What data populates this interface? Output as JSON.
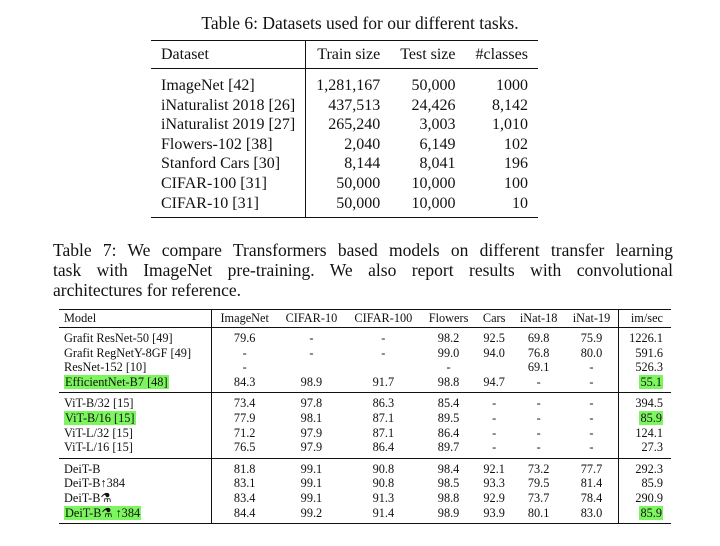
{
  "table6": {
    "caption": "Table 6: Datasets used for our different tasks.",
    "headers": [
      "Dataset",
      "Train size",
      "Test size",
      "#classes"
    ],
    "rows": [
      [
        "ImageNet [42]",
        "1,281,167",
        "50,000",
        "1000"
      ],
      [
        "iNaturalist 2018 [26]",
        "437,513",
        "24,426",
        "8,142"
      ],
      [
        "iNaturalist 2019 [27]",
        "265,240",
        "3,003",
        "1,010"
      ],
      [
        "Flowers-102 [38]",
        "2,040",
        "6,149",
        "102"
      ],
      [
        "Stanford Cars [30]",
        "8,144",
        "8,041",
        "196"
      ],
      [
        "CIFAR-100 [31]",
        "50,000",
        "10,000",
        "100"
      ],
      [
        "CIFAR-10 [31]",
        "50,000",
        "10,000",
        "10"
      ]
    ]
  },
  "table7": {
    "caption_lines": [
      "Table 7: We compare Transformers based models on different transfer learning",
      "task with ImageNet pre-training. We also report results with convolutional",
      "architectures for reference."
    ],
    "headers": [
      "Model",
      "ImageNet",
      "CIFAR-10",
      "CIFAR-100",
      "Flowers",
      "Cars",
      "iNat-18",
      "iNat-19",
      "im/sec"
    ],
    "highlight_color": "#7cf55f",
    "groups": [
      [
        [
          "Grafit ResNet-50 [49]",
          "79.6",
          "-",
          "-",
          "98.2",
          "92.5",
          "69.8",
          "75.9",
          "1226.1"
        ],
        [
          "Grafit RegNetY-8GF [49]",
          "-",
          "-",
          "-",
          "99.0",
          "94.0",
          "76.8",
          "80.0",
          "591.6"
        ],
        [
          "ResNet-152 [10]",
          "-",
          "",
          "",
          "-",
          "",
          "69.1",
          "-",
          "526.3"
        ],
        [
          "EfficientNet-B7 [48]",
          "84.3",
          "98.9",
          "91.7",
          "98.8",
          "94.7",
          "-",
          "-",
          "55.1"
        ]
      ],
      [
        [
          "ViT-B/32 [15]",
          "73.4",
          "97.8",
          "86.3",
          "85.4",
          "-",
          "-",
          "-",
          "394.5"
        ],
        [
          "ViT-B/16 [15]",
          "77.9",
          "98.1",
          "87.1",
          "89.5",
          "-",
          "-",
          "-",
          "85.9"
        ],
        [
          "ViT-L/32 [15]",
          "71.2",
          "97.9",
          "87.1",
          "86.4",
          "-",
          "-",
          "-",
          "124.1"
        ],
        [
          "ViT-L/16 [15]",
          "76.5",
          "97.9",
          "86.4",
          "89.7",
          "-",
          "-",
          "-",
          "27.3"
        ]
      ],
      [
        [
          "DeiT-B",
          "81.8",
          "99.1",
          "90.8",
          "98.4",
          "92.1",
          "73.2",
          "77.7",
          "292.3"
        ],
        [
          "DeiT-B↑384",
          "83.1",
          "99.1",
          "90.8",
          "98.5",
          "93.3",
          "79.5",
          "81.4",
          "85.9"
        ],
        [
          "DeiT-B⚗",
          "83.4",
          "99.1",
          "91.3",
          "98.8",
          "92.9",
          "73.7",
          "78.4",
          "290.9"
        ],
        [
          "DeiT-B⚗ ↑384",
          "84.4",
          "99.2",
          "91.4",
          "98.9",
          "93.9",
          "80.1",
          "83.0",
          "85.9"
        ]
      ]
    ],
    "highlighted_cells": [
      [
        0,
        3,
        0
      ],
      [
        0,
        3,
        8
      ],
      [
        1,
        1,
        0
      ],
      [
        1,
        1,
        8
      ],
      [
        2,
        3,
        0
      ],
      [
        2,
        3,
        8
      ]
    ]
  }
}
